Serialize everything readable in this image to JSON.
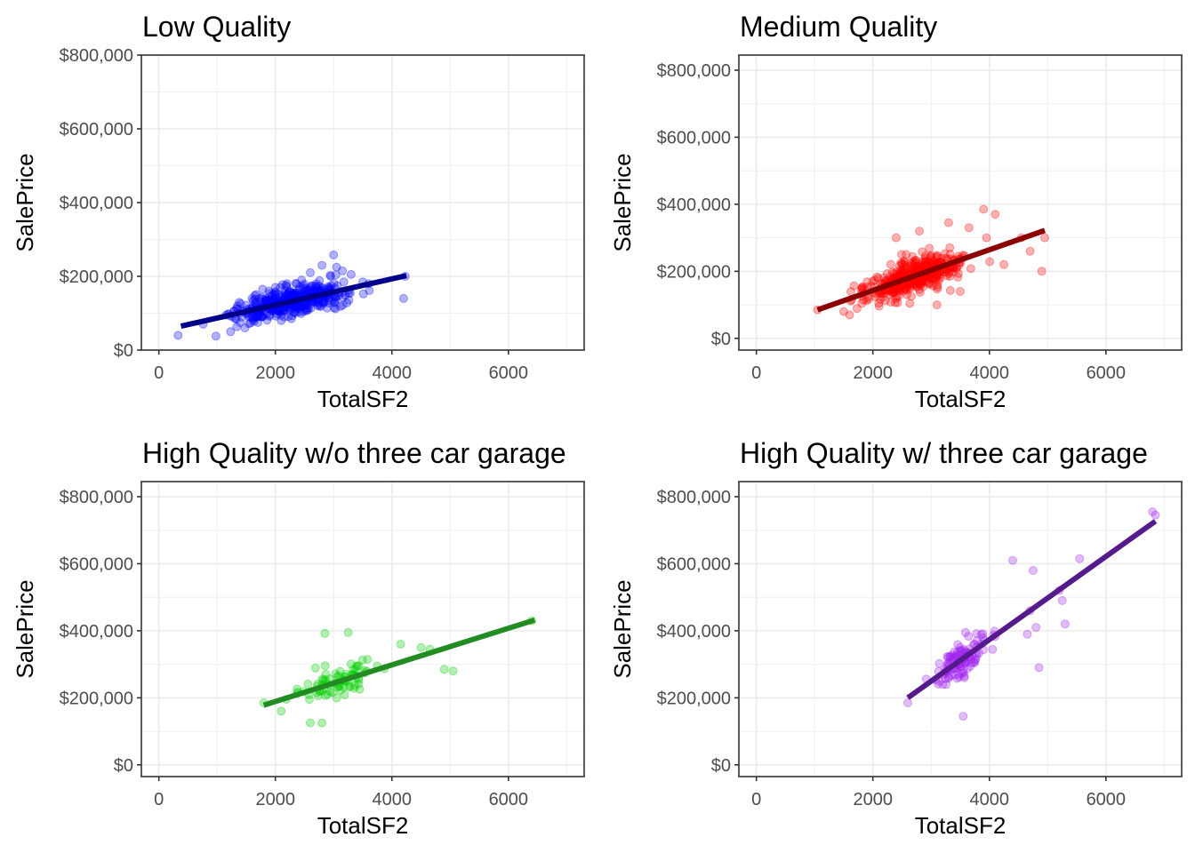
{
  "chart_data": [
    {
      "type": "scatter",
      "title": "Low Quality",
      "xlabel": "TotalSF2",
      "ylabel": "SalePrice",
      "xlim": [
        -300,
        7300
      ],
      "ylim": [
        0,
        800000
      ],
      "x_ticks": [
        0,
        2000,
        4000,
        6000
      ],
      "x_tick_labels": [
        "0",
        "2000",
        "4000",
        "6000"
      ],
      "y_ticks": [
        0,
        200000,
        400000,
        600000,
        800000
      ],
      "y_tick_labels": [
        "$0",
        "$200,000",
        "$400,000",
        "$600,000",
        "$800,000"
      ],
      "grid": true,
      "point_color": "#0000ff",
      "line_color": "#00008b",
      "fit_line": {
        "x": [
          380,
          4250
        ],
        "y": [
          65000,
          202000
        ]
      },
      "cluster": {
        "x_range": [
          700,
          3800
        ],
        "slope": 35.4,
        "intercept": 51500,
        "spread": 26000
      },
      "points": {
        "x": [
          330,
          760,
          980,
          1150,
          1230,
          1350,
          1480,
          1600,
          1700,
          1780,
          1900,
          2000,
          2100,
          2200,
          2300,
          2450,
          2600,
          2800,
          2950,
          3000,
          3050,
          3150,
          3300,
          3500,
          3600,
          4200,
          4230
        ],
        "y": [
          40000,
          70000,
          38000,
          95000,
          50000,
          120000,
          60000,
          140000,
          75000,
          165000,
          95000,
          170000,
          80000,
          180000,
          155000,
          190000,
          210000,
          230000,
          200000,
          258000,
          225000,
          215000,
          205000,
          185000,
          180000,
          140000,
          200000
        ]
      }
    },
    {
      "type": "scatter",
      "title": "Medium Quality",
      "xlabel": "TotalSF2",
      "ylabel": "SalePrice",
      "xlim": [
        -300,
        7300
      ],
      "ylim": [
        -35000,
        845000
      ],
      "x_ticks": [
        0,
        2000,
        4000,
        6000
      ],
      "x_tick_labels": [
        "0",
        "2000",
        "4000",
        "6000"
      ],
      "y_ticks": [
        0,
        200000,
        400000,
        600000,
        800000
      ],
      "y_tick_labels": [
        "$0",
        "$200,000",
        "$400,000",
        "$600,000",
        "$800,000"
      ],
      "grid": true,
      "point_color": "#ff0000",
      "line_color": "#8b0000",
      "fit_line": {
        "x": [
          1050,
          4950
        ],
        "y": [
          85000,
          322000
        ]
      },
      "cluster": {
        "x_range": [
          1450,
          4000
        ],
        "slope": 60.8,
        "intercept": 21000,
        "spread": 36000
      },
      "points": {
        "x": [
          1050,
          1500,
          1600,
          2100,
          2400,
          2800,
          3100,
          3300,
          3500,
          3650,
          3900,
          3950,
          4100,
          4250,
          4550,
          4700,
          4900,
          4950
        ],
        "y": [
          85000,
          80000,
          70000,
          105000,
          300000,
          320000,
          100000,
          345000,
          140000,
          330000,
          385000,
          300000,
          370000,
          220000,
          300000,
          260000,
          200000,
          300000
        ]
      }
    },
    {
      "type": "scatter",
      "title": "High Quality w/o three car garage",
      "xlabel": "TotalSF2",
      "ylabel": "SalePrice",
      "xlim": [
        -300,
        7300
      ],
      "ylim": [
        -35000,
        845000
      ],
      "x_ticks": [
        0,
        2000,
        4000,
        6000
      ],
      "x_tick_labels": [
        "0",
        "2000",
        "4000",
        "6000"
      ],
      "y_ticks": [
        0,
        200000,
        400000,
        600000,
        800000
      ],
      "y_tick_labels": [
        "$0",
        "$200,000",
        "$400,000",
        "$600,000",
        "$800,000"
      ],
      "grid": true,
      "point_color": "#00cd00",
      "line_color": "#228b22",
      "fit_line": {
        "x": [
          1800,
          6450
        ],
        "y": [
          178000,
          432000
        ]
      },
      "cluster": {
        "x_range": [
          2000,
          4200
        ],
        "slope": 54.6,
        "intercept": 80000,
        "spread": 33000
      },
      "points": {
        "x": [
          1800,
          2850,
          3250,
          2800,
          4150,
          4500,
          4650,
          4900,
          5050,
          6400,
          2600,
          2100
        ],
        "y": [
          185000,
          392000,
          395000,
          125000,
          360000,
          350000,
          345000,
          285000,
          280000,
          430000,
          125000,
          160000
        ]
      }
    },
    {
      "type": "scatter",
      "title": "High Quality w/ three car garage",
      "xlabel": "TotalSF2",
      "ylabel": "SalePrice",
      "xlim": [
        -300,
        7300
      ],
      "ylim": [
        -35000,
        845000
      ],
      "x_ticks": [
        0,
        2000,
        4000,
        6000
      ],
      "x_tick_labels": [
        "0",
        "2000",
        "4000",
        "6000"
      ],
      "y_ticks": [
        0,
        200000,
        400000,
        600000,
        800000
      ],
      "y_tick_labels": [
        "$0",
        "$200,000",
        "$400,000",
        "$600,000",
        "$800,000"
      ],
      "grid": true,
      "point_color": "#a020f0",
      "line_color": "#551a8b",
      "fit_line": {
        "x": [
          2600,
          6850
        ],
        "y": [
          200000,
          727000
        ]
      },
      "cluster": {
        "x_range": [
          2800,
          4300
        ],
        "slope": 124,
        "intercept": -122400,
        "spread": 40000
      },
      "points": {
        "x": [
          2600,
          3550,
          4400,
          4700,
          4750,
          4850,
          5200,
          5250,
          5300,
          5550,
          6800,
          6850,
          4800,
          4650,
          3200
        ],
        "y": [
          185000,
          145000,
          610000,
          460000,
          580000,
          290000,
          520000,
          490000,
          420000,
          615000,
          755000,
          745000,
          410000,
          390000,
          240000
        ]
      }
    }
  ]
}
